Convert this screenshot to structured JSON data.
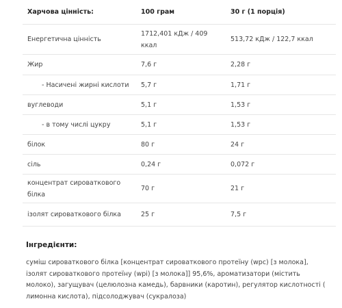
{
  "nutrition": {
    "headers": {
      "name": "Харчова цінність:",
      "per100": "100 грам",
      "per30": "30 г (1 порція)"
    },
    "rows": [
      {
        "name": "Енергетична цінність",
        "per100": "1712,401 кДж / 409 ккал",
        "per30": "513,72 кДж / 122,7 ккал",
        "sub": false
      },
      {
        "name": "Жир",
        "per100": "7,6 г",
        "per30": "2,28 г",
        "sub": false
      },
      {
        "name": "- Насичені жирні кислоти",
        "per100": "5,7 г",
        "per30": "1,71 г",
        "sub": true
      },
      {
        "name": "вуглеводи",
        "per100": "5,1 г",
        "per30": "1,53 г",
        "sub": false
      },
      {
        "name": "- в тому числі цукру",
        "per100": "5,1 г",
        "per30": "1,53 г",
        "sub": true
      },
      {
        "name": "білок",
        "per100": "80 г",
        "per30": "24 г",
        "sub": false
      },
      {
        "name": "сіль",
        "per100": "0,24 г",
        "per30": "0,072 г",
        "sub": false
      },
      {
        "name": "концентрат сироваткового білка",
        "per100": "70 г",
        "per30": "21 г",
        "sub": false
      },
      {
        "name": "ізолят сироваткового білка",
        "per100": "25 г",
        "per30": "7,5 г",
        "sub": false
      }
    ]
  },
  "ingredients": {
    "title": "Інгредієнти:",
    "text": "суміш сироваткового білка [концентрат сироваткового протеїну (wpc) [з молока], ізолят сироваткового протеїну (wpi) [з молока]] 95,6%, ароматизатори (містить молоко), загущувач (целюлозна камедь), барвники (каротин), регулятор кислотності ( лимонна кислота), підсолоджувач (сукралоза)"
  }
}
